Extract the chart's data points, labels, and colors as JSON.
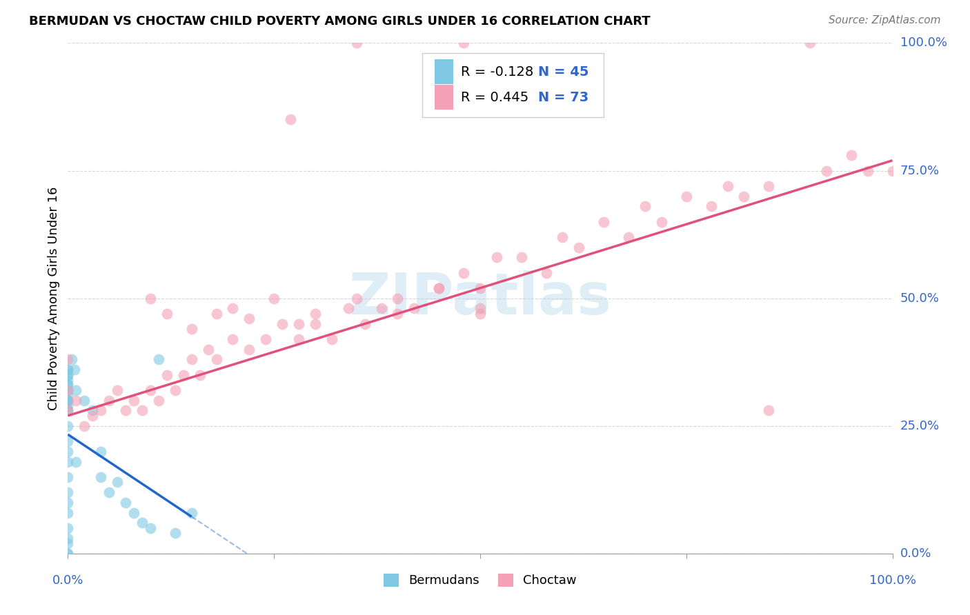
{
  "title": "BERMUDAN VS CHOCTAW CHILD POVERTY AMONG GIRLS UNDER 16 CORRELATION CHART",
  "source": "Source: ZipAtlas.com",
  "ylabel": "Child Poverty Among Girls Under 16",
  "watermark": "ZIPatlas",
  "legend_r1": "R = -0.128",
  "legend_n1": "N = 45",
  "legend_r2": "R = 0.445",
  "legend_n2": "N = 73",
  "legend_label1": "Bermudans",
  "legend_label2": "Choctaw",
  "blue_color": "#7ec8e3",
  "pink_color": "#f4a0b5",
  "blue_line_color": "#2266cc",
  "pink_line_color": "#e0507a",
  "axis_label_color": "#3366cc",
  "ytick_labels": [
    "0.0%",
    "25.0%",
    "50.0%",
    "75.0%",
    "100.0%"
  ],
  "ytick_values": [
    0.0,
    0.25,
    0.5,
    0.75,
    1.0
  ],
  "xtick_labels": [
    "0.0%",
    "100.0%"
  ],
  "xtick_values": [
    0.0,
    1.0
  ],
  "grid_color": "#cccccc",
  "background_color": "#ffffff",
  "bermudan_x": [
    0.0,
    0.0,
    0.0,
    0.0,
    0.0,
    0.0,
    0.0,
    0.0,
    0.0,
    0.0,
    0.0,
    0.0,
    0.0,
    0.0,
    0.0,
    0.0,
    0.0,
    0.0,
    0.0,
    0.0,
    0.0,
    0.0,
    0.0,
    0.0,
    0.0,
    0.0,
    0.0,
    0.0,
    0.005,
    0.008,
    0.01,
    0.01,
    0.02,
    0.03,
    0.04,
    0.04,
    0.05,
    0.06,
    0.07,
    0.08,
    0.09,
    0.1,
    0.11,
    0.13,
    0.15
  ],
  "bermudan_y": [
    0.3,
    0.33,
    0.35,
    0.36,
    0.3,
    0.32,
    0.28,
    0.29,
    0.31,
    0.33,
    0.34,
    0.35,
    0.36,
    0.3,
    0.28,
    0.25,
    0.22,
    0.2,
    0.18,
    0.15,
    0.12,
    0.1,
    0.08,
    0.05,
    0.03,
    0.02,
    0.0,
    0.0,
    0.38,
    0.36,
    0.32,
    0.18,
    0.3,
    0.28,
    0.2,
    0.15,
    0.12,
    0.14,
    0.1,
    0.08,
    0.06,
    0.05,
    0.38,
    0.04,
    0.08
  ],
  "choctaw_x": [
    0.0,
    0.0,
    0.0,
    0.01,
    0.02,
    0.03,
    0.04,
    0.05,
    0.06,
    0.07,
    0.08,
    0.09,
    0.1,
    0.11,
    0.12,
    0.13,
    0.14,
    0.15,
    0.16,
    0.17,
    0.18,
    0.2,
    0.22,
    0.24,
    0.26,
    0.28,
    0.3,
    0.32,
    0.34,
    0.36,
    0.38,
    0.4,
    0.42,
    0.45,
    0.48,
    0.5,
    0.52,
    0.55,
    0.58,
    0.6,
    0.62,
    0.65,
    0.68,
    0.7,
    0.72,
    0.75,
    0.78,
    0.8,
    0.82,
    0.85,
    0.27,
    0.35,
    0.48,
    0.9,
    0.92,
    0.95,
    0.97,
    1.0,
    0.5,
    0.85,
    0.1,
    0.12,
    0.15,
    0.18,
    0.2,
    0.22,
    0.25,
    0.28,
    0.3,
    0.35,
    0.4,
    0.45,
    0.5
  ],
  "choctaw_y": [
    0.28,
    0.32,
    0.38,
    0.3,
    0.25,
    0.27,
    0.28,
    0.3,
    0.32,
    0.28,
    0.3,
    0.28,
    0.32,
    0.3,
    0.35,
    0.32,
    0.35,
    0.38,
    0.35,
    0.4,
    0.38,
    0.42,
    0.4,
    0.42,
    0.45,
    0.42,
    0.45,
    0.42,
    0.48,
    0.45,
    0.48,
    0.5,
    0.48,
    0.52,
    0.55,
    0.52,
    0.58,
    0.58,
    0.55,
    0.62,
    0.6,
    0.65,
    0.62,
    0.68,
    0.65,
    0.7,
    0.68,
    0.72,
    0.7,
    0.72,
    0.85,
    1.0,
    1.0,
    1.0,
    0.75,
    0.78,
    0.75,
    0.75,
    0.48,
    0.28,
    0.5,
    0.47,
    0.44,
    0.47,
    0.48,
    0.46,
    0.5,
    0.45,
    0.47,
    0.5,
    0.47,
    0.52,
    0.47
  ]
}
